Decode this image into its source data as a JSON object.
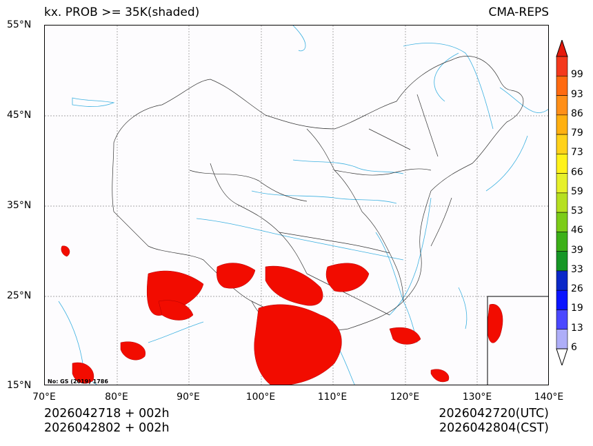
{
  "title": {
    "left": "kx. PROB >= 35K(shaded)",
    "right": "CMA-REPS"
  },
  "axes": {
    "lat_labels": [
      "55°N",
      "45°N",
      "35°N",
      "25°N",
      "15°N"
    ],
    "lon_labels": [
      "70°E",
      "80°E",
      "90°E",
      "100°E",
      "110°E",
      "120°E",
      "130°E",
      "140°E"
    ],
    "lat_range": [
      15,
      55
    ],
    "lon_range": [
      70,
      140
    ]
  },
  "watermark": "No: GS (2019) 1786",
  "footer": {
    "init_utc": "2026042718  +  002h",
    "init_cst": "2026042802  +  002h",
    "valid_utc": "2026042720(UTC)",
    "valid_cst": "2026042804(CST)"
  },
  "colorbar": {
    "labels": [
      "99",
      "93",
      "86",
      "79",
      "73",
      "66",
      "59",
      "53",
      "46",
      "39",
      "33",
      "26",
      "19",
      "13",
      "6"
    ],
    "colors": [
      "#f4391c",
      "#ff6a10",
      "#ff8f18",
      "#ffb010",
      "#ffd21a",
      "#fff21a",
      "#e6f02a",
      "#b6e020",
      "#7ccc18",
      "#3cb018",
      "#169626",
      "#0a28c8",
      "#0a14ff",
      "#4a48ff",
      "#aeaef8"
    ],
    "over_color": "#e41a0c",
    "under_color": "#ffffff"
  },
  "colors": {
    "shade": "#f20c00",
    "rivers": "#3ab0e0",
    "borders": "#333333",
    "grid": "#888888"
  }
}
